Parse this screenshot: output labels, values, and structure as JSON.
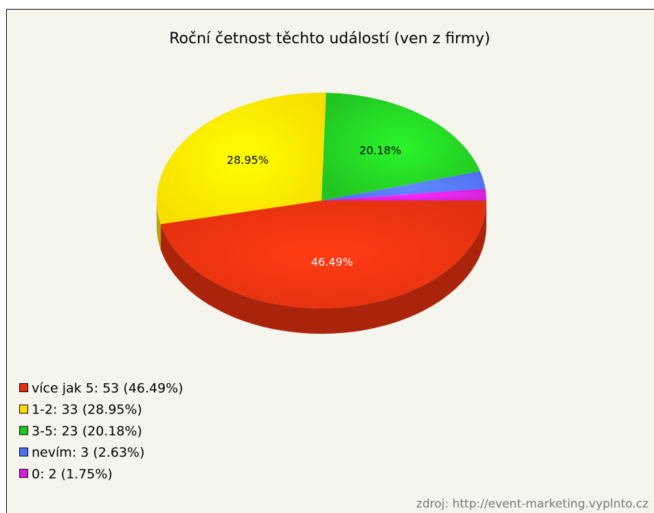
{
  "chart_data": {
    "type": "pie",
    "title": "Roční četnost těchto událostí (ven z firmy)",
    "legend": [
      "více jak 5: 53 (46.49%)",
      "1-2: 33 (28.95%)",
      "3-5: 23 (20.18%)",
      "nevím: 3 (2.63%)",
      "0: 2 (1.75%)"
    ],
    "values": [
      46.49,
      28.95,
      20.18,
      2.63,
      1.75
    ],
    "value_labels": [
      "46.49%",
      "28.95%",
      "20.18%",
      null,
      null
    ],
    "colors": [
      "#e2300f",
      "#f6df00",
      "#22c422",
      "#4f6ff2",
      "#d021d6"
    ],
    "source": "zdroj: http://event-marketing.vyplnto.cz"
  }
}
